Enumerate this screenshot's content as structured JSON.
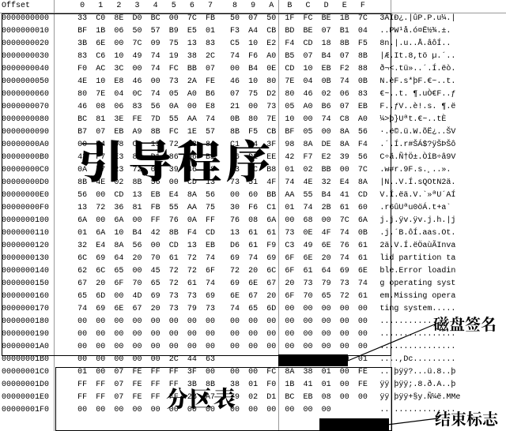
{
  "header": {
    "offset_label": "Offset",
    "cols": [
      "0",
      "1",
      "2",
      "3",
      "4",
      "5",
      "6",
      "7",
      "8",
      "9",
      "A",
      "B",
      "C",
      "D",
      "E",
      "F"
    ]
  },
  "overlays": {
    "boot": "引导程序",
    "partition": "分区表",
    "disk_sig": "磁盘签名",
    "end_mark": "结束标志"
  },
  "rows": [
    {
      "o": "0000000000",
      "b": [
        "33",
        "C0",
        "8E",
        "D0",
        "BC",
        "00",
        "7C",
        "FB",
        "50",
        "07",
        "50",
        "1F",
        "FC",
        "BE",
        "1B",
        "7C"
      ],
      "a": "3ÀÍÐ¿.|ûP.P.u¼.|"
    },
    {
      "o": "0000000010",
      "b": [
        "BF",
        "1B",
        "06",
        "50",
        "57",
        "B9",
        "E5",
        "01",
        "F3",
        "A4",
        "CB",
        "BD",
        "BE",
        "07",
        "B1",
        "04"
      ],
      "a": "..PW¹å.ó¤Ë½¾.±."
    },
    {
      "o": "0000000020",
      "b": [
        "3B",
        "6E",
        "00",
        "7C",
        "09",
        "75",
        "13",
        "83",
        "C5",
        "10",
        "E2",
        "F4",
        "CD",
        "18",
        "8B",
        "F5"
      ],
      "a": "8n.|.u..Å.âôÍ.."
    },
    {
      "o": "0000000030",
      "b": [
        "83",
        "C6",
        "10",
        "49",
        "74",
        "19",
        "38",
        "2C",
        "74",
        "F6",
        "A0",
        "B5",
        "07",
        "B4",
        "07",
        "8B"
      ],
      "a": "|Æ.It.8,tö µ.´.."
    },
    {
      "o": "0000000040",
      "b": [
        "F0",
        "AC",
        "3C",
        "00",
        "74",
        "FC",
        "BB",
        "07",
        "00",
        "B4",
        "0E",
        "CD",
        "10",
        "EB",
        "F2",
        "88"
      ],
      "a": "ð¬<.tü»..´.Í.ëò."
    },
    {
      "o": "0000000050",
      "b": [
        "4E",
        "10",
        "E8",
        "46",
        "00",
        "73",
        "2A",
        "FE",
        "46",
        "10",
        "80",
        "7E",
        "04",
        "0B",
        "74",
        "0B"
      ],
      "a": "N.èF.s*þF.€~..t."
    },
    {
      "o": "0000000060",
      "b": [
        "80",
        "7E",
        "04",
        "0C",
        "74",
        "05",
        "A0",
        "B6",
        "07",
        "75",
        "D2",
        "80",
        "46",
        "02",
        "06",
        "83"
      ],
      "a": "€~..t. ¶.uÒ€F..ƒ"
    },
    {
      "o": "0000000070",
      "b": [
        "46",
        "08",
        "06",
        "83",
        "56",
        "0A",
        "00",
        "E8",
        "21",
        "00",
        "73",
        "05",
        "A0",
        "B6",
        "07",
        "EB"
      ],
      "a": "F..ƒV..è!.s. ¶.ë"
    },
    {
      "o": "0000000080",
      "b": [
        "BC",
        "81",
        "3E",
        "FE",
        "7D",
        "55",
        "AA",
        "74",
        "0B",
        "80",
        "7E",
        "10",
        "00",
        "74",
        "C8",
        "A0"
      ],
      "a": "¼>þ}Uªt.€~..tÈ "
    },
    {
      "o": "0000000090",
      "b": [
        "B7",
        "07",
        "EB",
        "A9",
        "8B",
        "FC",
        "1E",
        "57",
        "8B",
        "F5",
        "CB",
        "BF",
        "05",
        "00",
        "8A",
        "56"
      ],
      "a": "·.ë©.ü.W.õË¿..ŠV"
    },
    {
      "o": "00000000A0",
      "b": [
        "00",
        "B4",
        "08",
        "CD",
        "13",
        "72",
        "23",
        "8A",
        "C1",
        "24",
        "3F",
        "98",
        "8A",
        "DE",
        "8A",
        "F4"
      ],
      "a": ".´.Í.r#ŠÁ$?ÿŠÞŠô"
    },
    {
      "o": "00000000B0",
      "b": [
        "43",
        "F7",
        "E3",
        "8B",
        "D1",
        "86",
        "D6",
        "B1",
        "06",
        "D2",
        "EE",
        "42",
        "F7",
        "E2",
        "39",
        "56"
      ],
      "a": "C÷ã.Ñ†Ö±.ÒîB÷â9V"
    },
    {
      "o": "00000000C0",
      "b": [
        "0A",
        "77",
        "23",
        "72",
        "05",
        "39",
        "46",
        "08",
        "73",
        "1C",
        "B8",
        "01",
        "02",
        "BB",
        "00",
        "7C"
      ],
      "a": ".w#r.9F.s.¸..»."
    },
    {
      "o": "00000000D0",
      "b": [
        "8B",
        "4E",
        "02",
        "8B",
        "56",
        "00",
        "CD",
        "13",
        "73",
        "51",
        "4F",
        "74",
        "4E",
        "32",
        "E4",
        "8A"
      ],
      "a": "|N..V.Í.sQOtN2ä."
    },
    {
      "o": "00000000E0",
      "b": [
        "56",
        "00",
        "CD",
        "13",
        "EB",
        "E4",
        "8A",
        "56",
        "00",
        "60",
        "BB",
        "AA",
        "55",
        "B4",
        "41",
        "CD"
      ],
      "a": "V.Í.ëä.V.`»ªU´AÍ"
    },
    {
      "o": "00000000F0",
      "b": [
        "13",
        "72",
        "36",
        "81",
        "FB",
        "55",
        "AA",
        "75",
        "30",
        "F6",
        "C1",
        "01",
        "74",
        "2B",
        "61",
        "60"
      ],
      "a": ".r6ûUªu0öÁ.t+a`"
    },
    {
      "o": "0000000100",
      "b": [
        "6A",
        "00",
        "6A",
        "00",
        "FF",
        "76",
        "0A",
        "FF",
        "76",
        "08",
        "6A",
        "00",
        "68",
        "00",
        "7C",
        "6A"
      ],
      "a": "j.j.ÿv.ÿv.j.h.|j"
    },
    {
      "o": "0000000110",
      "b": [
        "01",
        "6A",
        "10",
        "B4",
        "42",
        "8B",
        "F4",
        "CD",
        "13",
        "61",
        "61",
        "73",
        "0E",
        "4F",
        "74",
        "0B"
      ],
      "a": ".j.´B.ôÍ.aas.Ot."
    },
    {
      "o": "0000000120",
      "b": [
        "32",
        "E4",
        "8A",
        "56",
        "00",
        "CD",
        "13",
        "EB",
        "D6",
        "61",
        "F9",
        "C3",
        "49",
        "6E",
        "76",
        "61"
      ],
      "a": "2ä.V.Í.ëÖaùÃInva"
    },
    {
      "o": "0000000130",
      "b": [
        "6C",
        "69",
        "64",
        "20",
        "70",
        "61",
        "72",
        "74",
        "69",
        "74",
        "69",
        "6F",
        "6E",
        "20",
        "74",
        "61"
      ],
      "a": "lid partition ta"
    },
    {
      "o": "0000000140",
      "b": [
        "62",
        "6C",
        "65",
        "00",
        "45",
        "72",
        "72",
        "6F",
        "72",
        "20",
        "6C",
        "6F",
        "61",
        "64",
        "69",
        "6E"
      ],
      "a": "ble.Error loadin"
    },
    {
      "o": "0000000150",
      "b": [
        "67",
        "20",
        "6F",
        "70",
        "65",
        "72",
        "61",
        "74",
        "69",
        "6E",
        "67",
        "20",
        "73",
        "79",
        "73",
        "74"
      ],
      "a": "g operating syst"
    },
    {
      "o": "0000000160",
      "b": [
        "65",
        "6D",
        "00",
        "4D",
        "69",
        "73",
        "73",
        "69",
        "6E",
        "67",
        "20",
        "6F",
        "70",
        "65",
        "72",
        "61"
      ],
      "a": "em.Missing opera"
    },
    {
      "o": "0000000170",
      "b": [
        "74",
        "69",
        "6E",
        "67",
        "20",
        "73",
        "79",
        "73",
        "74",
        "65",
        "6D",
        "00",
        "00",
        "00",
        "00",
        "00"
      ],
      "a": "ting system....."
    },
    {
      "o": "0000000180",
      "b": [
        "00",
        "00",
        "00",
        "00",
        "00",
        "00",
        "00",
        "00",
        "00",
        "00",
        "00",
        "00",
        "00",
        "00",
        "00",
        "00"
      ],
      "a": "................"
    },
    {
      "o": "0000000190",
      "b": [
        "00",
        "00",
        "00",
        "00",
        "00",
        "00",
        "00",
        "00",
        "00",
        "00",
        "00",
        "00",
        "00",
        "00",
        "00",
        "00"
      ],
      "a": "................"
    },
    {
      "o": "00000001A0",
      "b": [
        "00",
        "00",
        "00",
        "00",
        "00",
        "00",
        "00",
        "00",
        "00",
        "00",
        "00",
        "00",
        "00",
        "00",
        "00",
        "00"
      ],
      "a": "................"
    },
    {
      "o": "00000001B0",
      "b": [
        "00",
        "00",
        "00",
        "00",
        "00",
        "2C",
        "44",
        "63",
        "",
        "",
        "",
        "",
        "00",
        "00",
        "00",
        "01"
      ],
      "a": "....,Dc........."
    },
    {
      "o": "00000001C0",
      "b": [
        "01",
        "00",
        "07",
        "FE",
        "FF",
        "FF",
        "3F",
        "00",
        "00",
        "00",
        "FC",
        "8A",
        "38",
        "01",
        "00",
        "FE"
      ],
      "a": "...þÿÿ?...ü.8..þ"
    },
    {
      "o": "00000001D0",
      "b": [
        "FF",
        "FF",
        "07",
        "FE",
        "FF",
        "FF",
        "3B",
        "8B",
        "38",
        "01",
        "F0",
        "1B",
        "41",
        "01",
        "00",
        "FE"
      ],
      "a": "ÿÿ.þÿÿ;.8.ð.A..þ"
    },
    {
      "o": "00000001E0",
      "b": [
        "FF",
        "FF",
        "07",
        "FE",
        "FF",
        "FF",
        "2B",
        "A7",
        "79",
        "02",
        "D1",
        "BC",
        "EB",
        "08",
        "00",
        "00"
      ],
      "a": "ÿÿ.þÿÿ+§y.Ñ¼ë.MMe"
    },
    {
      "o": "00000001F0",
      "b": [
        "00",
        "00",
        "00",
        "00",
        "00",
        "00",
        "00",
        "00",
        "00",
        "00",
        "00",
        "00",
        "00",
        "00",
        "",
        "  "
      ],
      "a": "................"
    }
  ]
}
